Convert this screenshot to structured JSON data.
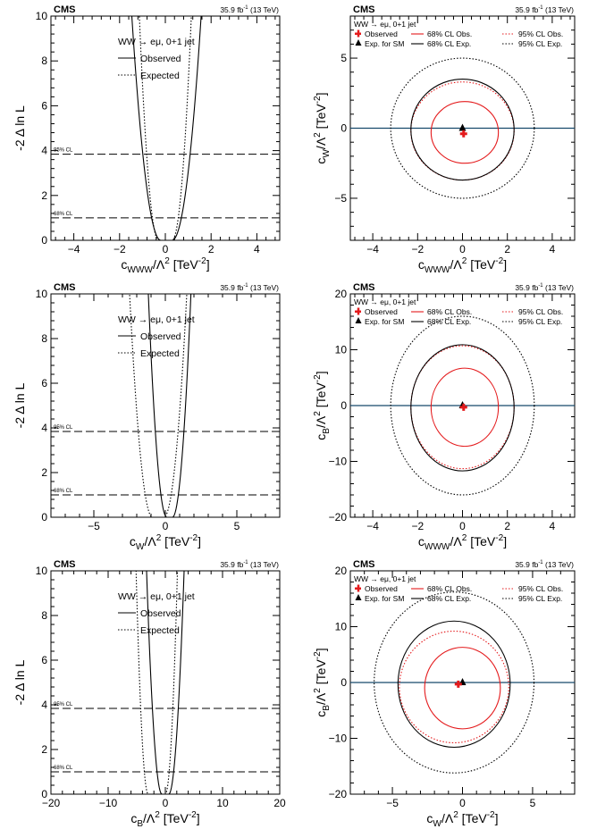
{
  "figure": {
    "experiment": "CMS",
    "lumi": "35.9 fb",
    "lumi_exp": "-1",
    "energy": " (13 TeV)",
    "cl_labels": {
      "cl95": "95% CL",
      "cl68": "68% CL"
    }
  },
  "chart_data": [
    {
      "id": "p1",
      "type": "line",
      "title": "",
      "xlabel": {
        "base": "c",
        "sub": "WWW",
        "tail": "/Λ",
        "sup": "2",
        "unit": " [TeV",
        "unitsup": "-2",
        "close": "]"
      },
      "ylabel": "-2 Δ ln L",
      "xlim": [
        -5,
        5
      ],
      "ylim": [
        0,
        10
      ],
      "xticks": [
        -4,
        -2,
        0,
        2,
        4
      ],
      "yticks": [
        0,
        2,
        4,
        6,
        8,
        10
      ],
      "hlines": [
        3.84,
        1.0
      ],
      "legend": {
        "header": "WW → eμ, 0+1 jet",
        "items": [
          {
            "label": "Observed",
            "style": "solid"
          },
          {
            "label": "Expected",
            "style": "dotted"
          }
        ]
      },
      "series": [
        {
          "name": "Observed",
          "style": "solid",
          "min_x": 0.05,
          "flat": 0.25,
          "slope_left": 0.16,
          "slope_right": 0.16
        },
        {
          "name": "Expected",
          "style": "dotted",
          "min_x": 0.0,
          "flat": 0.3,
          "slope_left": 0.07,
          "slope_right": 0.07
        }
      ]
    },
    {
      "id": "p2",
      "type": "contour",
      "xlabel": {
        "base": "c",
        "sub": "WWW",
        "tail": "/Λ",
        "sup": "2",
        "unit": " [TeV",
        "unitsup": "-2",
        "close": "]"
      },
      "ylabel": {
        "base": "c",
        "sub": "W",
        "tail": "/Λ",
        "sup": "2",
        "unit": " [TeV",
        "unitsup": "-2",
        "close": "]"
      },
      "xlim": [
        -5,
        5
      ],
      "ylim": [
        -8,
        8
      ],
      "xticks": [
        -4,
        -2,
        0,
        2,
        4
      ],
      "yticks": [
        -5,
        0,
        5
      ],
      "zero_line": true,
      "legend": {
        "header": "WW → eμ, 0+1 jet",
        "items": [
          {
            "label": "Observed",
            "symbol": "cross"
          },
          {
            "label": "68% CL Obs.",
            "symbol": "red-solid"
          },
          {
            "label": "95% CL Obs.",
            "symbol": "red-dotted"
          },
          {
            "label": "Exp. for SM",
            "symbol": "triangle"
          },
          {
            "label": "68% CL Exp.",
            "symbol": "black-solid"
          },
          {
            "label": "95% CL Exp.",
            "symbol": "black-dotted"
          }
        ]
      },
      "points": {
        "observed": [
          0.05,
          -0.4
        ],
        "expected_sm": [
          0.0,
          0.0
        ]
      },
      "ellipses": [
        {
          "name": "68% CL Obs.",
          "color": "#e41a1c",
          "style": "solid",
          "cx": 0.1,
          "cy": -0.3,
          "rx": 1.5,
          "ry": 2.2
        },
        {
          "name": "95% CL Obs.",
          "color": "#e41a1c",
          "style": "dotted",
          "cx": 0.0,
          "cy": -0.2,
          "rx": 2.3,
          "ry": 3.5
        },
        {
          "name": "68% CL Exp.",
          "color": "#000000",
          "style": "solid",
          "cx": 0.0,
          "cy": -0.1,
          "rx": 2.3,
          "ry": 3.6
        },
        {
          "name": "95% CL Exp.",
          "color": "#000000",
          "style": "dotted",
          "cx": 0.0,
          "cy": 0.0,
          "rx": 3.2,
          "ry": 5.0
        }
      ]
    },
    {
      "id": "p3",
      "type": "line",
      "xlabel": {
        "base": "c",
        "sub": "W",
        "tail": "/Λ",
        "sup": "2",
        "unit": " [TeV",
        "unitsup": "-2",
        "close": "]"
      },
      "ylabel": "-2 Δ ln L",
      "xlim": [
        -8,
        8
      ],
      "ylim": [
        0,
        10
      ],
      "xticks": [
        -5,
        0,
        5
      ],
      "yticks": [
        0,
        2,
        4,
        6,
        8,
        10
      ],
      "hlines": [
        3.84,
        1.0
      ],
      "legend": {
        "header": "WW → eμ, 0+1 jet",
        "items": [
          {
            "label": "Observed",
            "style": "solid"
          },
          {
            "label": "Expected",
            "style": "dotted"
          }
        ]
      },
      "series": [
        {
          "name": "Observed",
          "style": "solid",
          "min_x": 0.3,
          "flat": 0.2,
          "slope_left": 0.065,
          "slope_right": 0.065
        },
        {
          "name": "Expected",
          "style": "dotted",
          "min_x": -0.5,
          "flat": 0.4,
          "slope_left": 0.1,
          "slope_right": 0.1
        }
      ]
    },
    {
      "id": "p4",
      "type": "contour",
      "xlabel": {
        "base": "c",
        "sub": "WWW",
        "tail": "/Λ",
        "sup": "2",
        "unit": " [TeV",
        "unitsup": "-2",
        "close": "]"
      },
      "ylabel": {
        "base": "c",
        "sub": "B",
        "tail": "/Λ",
        "sup": "2",
        "unit": " [TeV",
        "unitsup": "-2",
        "close": "]"
      },
      "xlim": [
        -5,
        5
      ],
      "ylim": [
        -20,
        20
      ],
      "xticks": [
        -4,
        -2,
        0,
        2,
        4
      ],
      "yticks": [
        -20,
        -10,
        0,
        10,
        20
      ],
      "zero_line": true,
      "legend": {
        "header": "WW → eμ, 0+1 jet",
        "items": [
          {
            "label": "Observed",
            "symbol": "cross"
          },
          {
            "label": "68% CL Obs.",
            "symbol": "red-solid"
          },
          {
            "label": "95% CL Obs.",
            "symbol": "red-dotted"
          },
          {
            "label": "Exp. for SM",
            "symbol": "triangle"
          },
          {
            "label": "68% CL Exp.",
            "symbol": "black-solid"
          },
          {
            "label": "95% CL Exp.",
            "symbol": "black-dotted"
          }
        ]
      },
      "points": {
        "observed": [
          0.05,
          -0.3
        ],
        "expected_sm": [
          0.0,
          0.0
        ]
      },
      "ellipses": [
        {
          "name": "68% CL Obs.",
          "color": "#e41a1c",
          "style": "solid",
          "cx": 0.1,
          "cy": -0.3,
          "rx": 1.5,
          "ry": 7.0
        },
        {
          "name": "95% CL Obs.",
          "color": "#e41a1c",
          "style": "dotted",
          "cx": 0.0,
          "cy": -0.3,
          "rx": 2.3,
          "ry": 11.0
        },
        {
          "name": "68% CL Exp.",
          "color": "#000000",
          "style": "solid",
          "cx": 0.0,
          "cy": -0.4,
          "rx": 2.3,
          "ry": 11.3
        },
        {
          "name": "95% CL Exp.",
          "color": "#000000",
          "style": "dotted",
          "cx": 0.0,
          "cy": 0.0,
          "rx": 3.2,
          "ry": 16.0
        }
      ]
    },
    {
      "id": "p5",
      "type": "line",
      "xlabel": {
        "base": "c",
        "sub": "B",
        "tail": "/Λ",
        "sup": "2",
        "unit": " [TeV",
        "unitsup": "-2",
        "close": "]"
      },
      "ylabel": "-2 Δ ln L",
      "xlim": [
        -20,
        20
      ],
      "ylim": [
        0,
        10
      ],
      "xticks": [
        -20,
        -10,
        0,
        10,
        20
      ],
      "yticks": [
        0,
        2,
        4,
        6,
        8,
        10
      ],
      "hlines": [
        3.84,
        1.0
      ],
      "legend": {
        "header": "WW → eμ, 0+1 jet",
        "items": [
          {
            "label": "Observed",
            "style": "solid"
          },
          {
            "label": "Expected",
            "style": "dotted"
          }
        ]
      },
      "series": [
        {
          "name": "Observed",
          "style": "solid",
          "min_x": 0.0,
          "flat": 0.6,
          "slope_left": 0.045,
          "slope_right": 0.045
        },
        {
          "name": "Expected",
          "style": "dotted",
          "min_x": -1.5,
          "flat": 1.5,
          "slope_left": 0.028,
          "slope_right": 0.028
        }
      ]
    },
    {
      "id": "p6",
      "type": "contour",
      "xlabel": {
        "base": "c",
        "sub": "W",
        "tail": "/Λ",
        "sup": "2",
        "unit": " [TeV",
        "unitsup": "-2",
        "close": "]"
      },
      "ylabel": {
        "base": "c",
        "sub": "B",
        "tail": "/Λ",
        "sup": "2",
        "unit": " [TeV",
        "unitsup": "-2",
        "close": "]"
      },
      "xlim": [
        -8,
        8
      ],
      "ylim": [
        -20,
        20
      ],
      "xticks": [
        -5,
        0,
        5
      ],
      "yticks": [
        -20,
        -10,
        0,
        10,
        20
      ],
      "zero_line": true,
      "legend": {
        "header": "WW → eμ, 0+1 jet",
        "items": [
          {
            "label": "Observed",
            "symbol": "cross"
          },
          {
            "label": "68% CL Obs.",
            "symbol": "red-solid"
          },
          {
            "label": "95% CL Obs.",
            "symbol": "red-dotted"
          },
          {
            "label": "Exp. for SM",
            "symbol": "triangle"
          },
          {
            "label": "68% CL Exp.",
            "symbol": "black-solid"
          },
          {
            "label": "95% CL Exp.",
            "symbol": "black-dotted"
          }
        ]
      },
      "points": {
        "observed": [
          -0.3,
          -0.3
        ],
        "expected_sm": [
          0.0,
          0.0
        ]
      },
      "ellipses": [
        {
          "name": "68% CL Obs.",
          "color": "#e41a1c",
          "style": "solid",
          "cx": 0.0,
          "cy": -1.0,
          "rx": 2.7,
          "ry": 7.3
        },
        {
          "name": "95% CL Obs.",
          "color": "#e41a1c",
          "style": "dotted",
          "cx": -0.6,
          "cy": -0.8,
          "rx": 3.9,
          "ry": 10.0
        },
        {
          "name": "68% CL Exp.",
          "color": "#000000",
          "style": "solid",
          "cx": -0.6,
          "cy": -0.3,
          "rx": 4.0,
          "ry": 11.3
        },
        {
          "name": "95% CL Exp.",
          "color": "#000000",
          "style": "dotted",
          "cx": -0.6,
          "cy": 0.0,
          "rx": 5.7,
          "ry": 16.2
        }
      ]
    }
  ]
}
